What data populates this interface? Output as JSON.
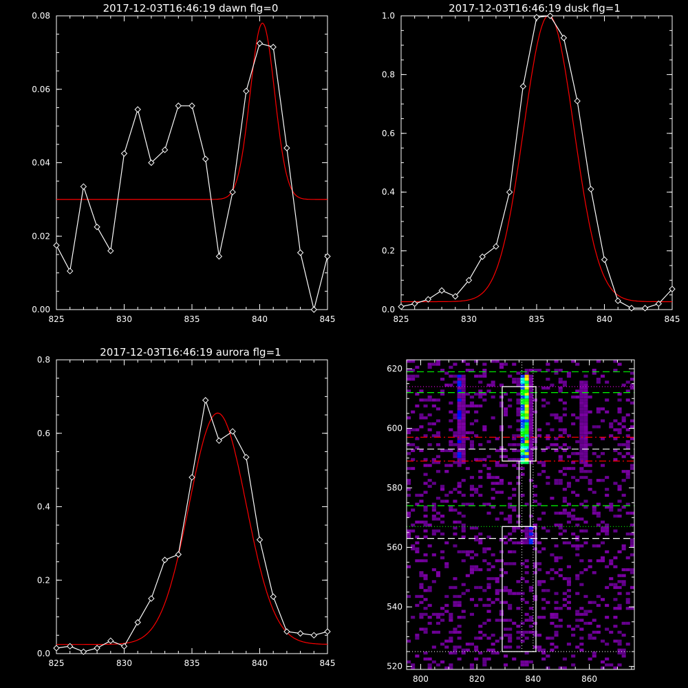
{
  "colors": {
    "background": "#000000",
    "axes": "#ffffff",
    "data": "#ffffff",
    "fit": "#ff0000"
  },
  "chart_data": [
    {
      "type": "line",
      "title": "2017-12-03T16:46:19 dawn flg=0",
      "xlim": [
        825,
        845
      ],
      "ylim": [
        0.0,
        0.08
      ],
      "xticks": [
        "825",
        "830",
        "835",
        "840",
        "845"
      ],
      "yticks": [
        "0.00",
        "0.02",
        "0.04",
        "0.06",
        "0.08"
      ],
      "series": [
        {
          "marker": "diamond",
          "color": "#ffffff",
          "x": [
            825,
            826,
            827,
            828,
            829,
            830,
            831,
            832,
            833,
            834,
            835,
            836,
            837,
            838,
            839,
            840,
            841,
            842,
            843,
            844,
            845
          ],
          "y": [
            0.0175,
            0.0105,
            0.0335,
            0.0225,
            0.016,
            0.0425,
            0.0545,
            0.04,
            0.0435,
            0.0555,
            0.0555,
            0.041,
            0.0145,
            0.032,
            0.0595,
            0.0725,
            0.0715,
            0.044,
            0.0155,
            0.0,
            0.0145
          ]
        },
        {
          "color": "#ff0000",
          "model": "gaussian",
          "center": 840.2,
          "sigma": 0.9,
          "amplitude": 0.048,
          "baseline": 0.03
        }
      ]
    },
    {
      "type": "line",
      "title": "2017-12-03T16:46:19 dusk flg=1",
      "xlim": [
        825,
        845
      ],
      "ylim": [
        0.0,
        1.0
      ],
      "xticks": [
        "825",
        "830",
        "835",
        "840",
        "845"
      ],
      "yticks": [
        "0.0",
        "0.2",
        "0.4",
        "0.6",
        "0.8",
        "1.0"
      ],
      "series": [
        {
          "marker": "diamond",
          "color": "#ffffff",
          "x": [
            825,
            826,
            827,
            828,
            829,
            830,
            831,
            832,
            833,
            834,
            835,
            836,
            837,
            838,
            839,
            840,
            841,
            842,
            843,
            844,
            845
          ],
          "y": [
            0.01,
            0.02,
            0.035,
            0.065,
            0.045,
            0.1,
            0.18,
            0.215,
            0.4,
            0.76,
            0.995,
            1.0,
            0.925,
            0.71,
            0.41,
            0.17,
            0.03,
            0.005,
            0.005,
            0.02,
            0.07
          ]
        },
        {
          "color": "#ff0000",
          "model": "gaussian",
          "center": 835.9,
          "sigma": 1.85,
          "amplitude": 0.975,
          "baseline": 0.027
        }
      ]
    },
    {
      "type": "line",
      "title": "2017-12-03T16:46:19 aurora flg=1",
      "xlim": [
        825,
        845
      ],
      "ylim": [
        0.0,
        0.8
      ],
      "xticks": [
        "825",
        "830",
        "835",
        "840",
        "845"
      ],
      "yticks": [
        "0.0",
        "0.2",
        "0.4",
        "0.6",
        "0.8"
      ],
      "series": [
        {
          "marker": "diamond",
          "color": "#ffffff",
          "x": [
            825,
            826,
            827,
            828,
            829,
            830,
            831,
            832,
            833,
            834,
            835,
            836,
            837,
            838,
            839,
            840,
            841,
            842,
            843,
            844,
            845
          ],
          "y": [
            0.015,
            0.02,
            0.005,
            0.015,
            0.035,
            0.02,
            0.085,
            0.15,
            0.255,
            0.27,
            0.48,
            0.69,
            0.58,
            0.605,
            0.535,
            0.31,
            0.155,
            0.06,
            0.055,
            0.05,
            0.06
          ]
        },
        {
          "color": "#ff0000",
          "model": "gaussian",
          "center": 836.9,
          "sigma": 2.1,
          "amplitude": 0.63,
          "baseline": 0.025
        }
      ]
    },
    {
      "type": "heatmap",
      "title": "",
      "xlim": [
        795,
        876
      ],
      "ylim": [
        519,
        623
      ],
      "xticks": [
        "800",
        "820",
        "840",
        "860"
      ],
      "yticks": [
        "520",
        "540",
        "560",
        "580",
        "600",
        "620"
      ],
      "colormap": "rainbow-on-purple",
      "hot_spots": [
        {
          "x": 813.5,
          "y_range": [
            588,
            617
          ],
          "intensity": 0.45
        },
        {
          "x": 836.5,
          "y_range": [
            588,
            617
          ],
          "intensity": 0.95
        },
        {
          "x": 857.5,
          "y_range": [
            588,
            615
          ],
          "intensity": 0.35
        },
        {
          "x": 838.5,
          "y_range": [
            561,
            566
          ],
          "intensity": 0.45
        }
      ],
      "boxes": [
        {
          "x": [
            829,
            841
          ],
          "y": [
            589,
            614
          ]
        },
        {
          "x": [
            835,
            839
          ],
          "y": [
            567,
            589
          ]
        },
        {
          "x": [
            829,
            841
          ],
          "y": [
            525,
            567
          ]
        }
      ],
      "hlines": [
        {
          "y": 619,
          "color": "#00ff00",
          "style": "dashed"
        },
        {
          "y": 614,
          "color": "#ff00ff",
          "style": "dotted"
        },
        {
          "y": 612,
          "color": "#00ff00",
          "style": "dashed"
        },
        {
          "y": 597,
          "color": "#ff0000",
          "style": "dashdot"
        },
        {
          "y": 593,
          "color": "#ffffff",
          "style": "dashed"
        },
        {
          "y": 589,
          "color": "#ff0000",
          "style": "dashdot"
        },
        {
          "y": 574,
          "color": "#00ff00",
          "style": "dashed"
        },
        {
          "y": 567,
          "color": "#00ff00",
          "style": "dotted"
        },
        {
          "y": 563,
          "color": "#ffffff",
          "style": "dashed"
        },
        {
          "y": 525,
          "color": "#ffffff",
          "style": "dotted"
        }
      ],
      "vlines": [
        {
          "x": 836,
          "color": "#ffffff",
          "style": "dotted"
        },
        {
          "x": 840,
          "color": "#ffffff",
          "style": "dotted"
        }
      ]
    }
  ]
}
